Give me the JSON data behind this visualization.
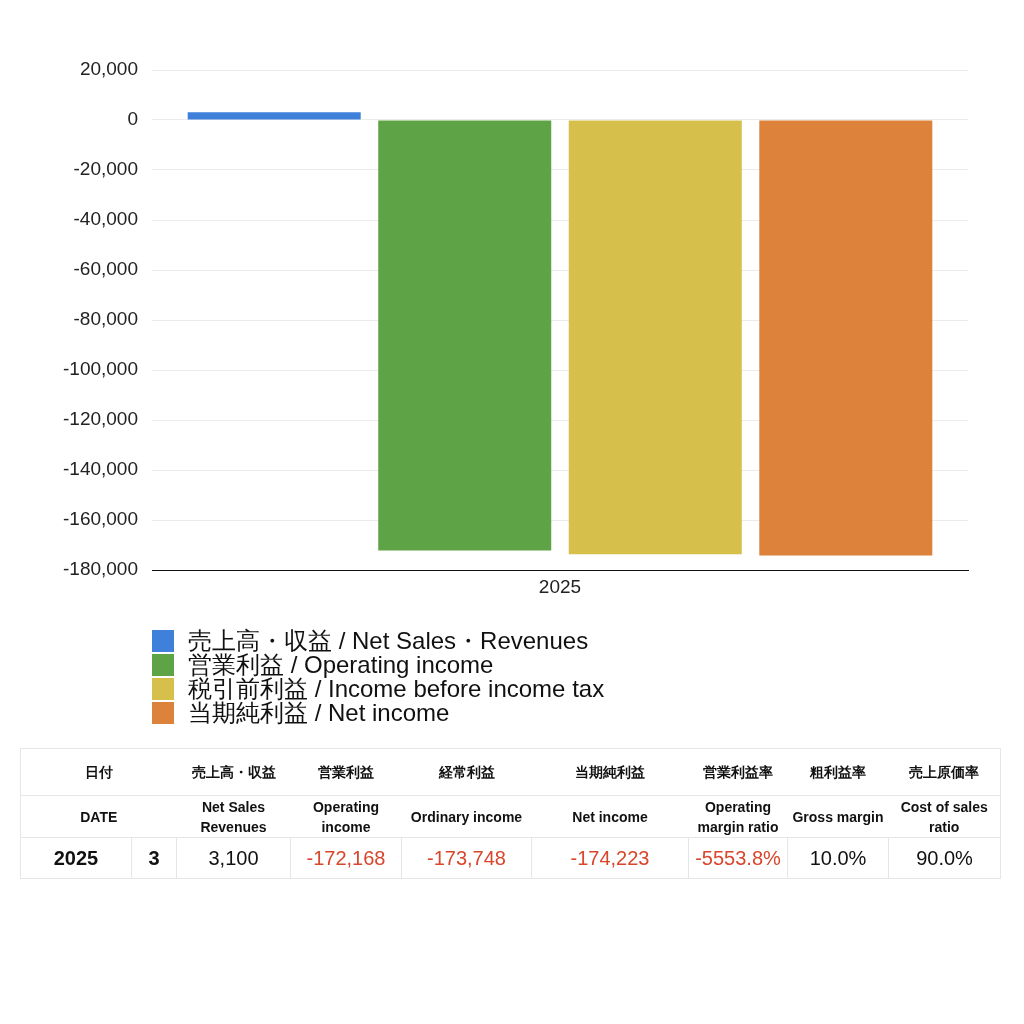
{
  "chart_data": [
    {
      "type": "bar",
      "categories": [
        "2025"
      ],
      "series": [
        {
          "name": "売上高・収益 / Net Sales・Revenues",
          "color": "#3f80da",
          "values": [
            3100
          ]
        },
        {
          "name": "営業利益 / Operating income",
          "color": "#5ea447",
          "values": [
            -172168
          ]
        },
        {
          "name": "税引前利益 / Income before income tax",
          "color": "#d6bf4a",
          "values": [
            -173748
          ]
        },
        {
          "name": "当期純利益 / Net income",
          "color": "#dc823a",
          "values": [
            -174223
          ]
        }
      ],
      "ylim": [
        -180000,
        20000
      ],
      "yticks": [
        {
          "value": -180000,
          "label": "-180,000"
        },
        {
          "value": -160000,
          "label": "-160,000"
        },
        {
          "value": -140000,
          "label": "-140,000"
        },
        {
          "value": -120000,
          "label": "-120,000"
        },
        {
          "value": -100000,
          "label": "-100,000"
        },
        {
          "value": -80000,
          "label": "-80,000"
        },
        {
          "value": -60000,
          "label": "-60,000"
        },
        {
          "value": -40000,
          "label": "-40,000"
        },
        {
          "value": -20000,
          "label": "-20,000"
        },
        0,
        {
          "value": 20000,
          "label": "20,000"
        }
      ],
      "grid": "y",
      "legend": "bottom"
    },
    {
      "type": "other",
      "annotations": [
        "日付",
        "売上高・収益",
        "営業利益",
        "経常利益",
        "当期純利益",
        "営業利益率",
        "粗利益率",
        "売上原価率",
        "DATE",
        "Net Sales Revenues",
        "Operating income",
        "Ordinary income",
        "Net income",
        "Operating margin ratio",
        "Gross margin",
        "Cost of sales ratio",
        "2025",
        "3",
        "3,100",
        "-172,168",
        "-173,748",
        "-174,223",
        "-5553.8%",
        "10.0%",
        "90.0%"
      ]
    }
  ]
}
